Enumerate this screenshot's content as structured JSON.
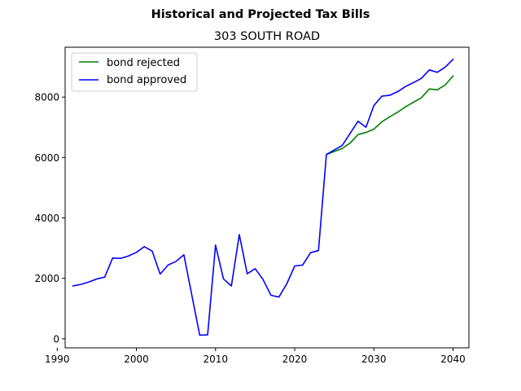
{
  "chart_data": {
    "type": "line",
    "title": "Historical and Projected Tax Bills",
    "subtitle": "303 SOUTH ROAD",
    "xlabel": "",
    "ylabel": "",
    "xlim": [
      1991,
      2042
    ],
    "ylim": [
      -300,
      9650
    ],
    "xticks": [
      1990,
      2000,
      2010,
      2020,
      2030,
      2040
    ],
    "yticks": [
      0,
      2000,
      4000,
      6000,
      8000
    ],
    "grid": false,
    "legend_position": "top-left",
    "series": [
      {
        "name": "bond rejected",
        "color": "#008000",
        "x": [
          2024,
          2025,
          2026,
          2027,
          2028,
          2029,
          2030,
          2031,
          2032,
          2033,
          2034,
          2035,
          2036,
          2037,
          2038,
          2039,
          2040
        ],
        "values": [
          6100,
          6200,
          6300,
          6480,
          6760,
          6830,
          6940,
          7180,
          7350,
          7500,
          7680,
          7830,
          7980,
          8270,
          8240,
          8400,
          8700
        ]
      },
      {
        "name": "bond approved",
        "color": "#0000ff",
        "x": [
          1992,
          1993,
          1994,
          1995,
          1996,
          1997,
          1998,
          1999,
          2000,
          2001,
          2002,
          2003,
          2004,
          2005,
          2006,
          2007,
          2008,
          2009,
          2010,
          2011,
          2012,
          2013,
          2014,
          2015,
          2016,
          2017,
          2018,
          2019,
          2020,
          2021,
          2022,
          2023,
          2024,
          2025,
          2026,
          2027,
          2028,
          2029,
          2030,
          2031,
          2032,
          2033,
          2034,
          2035,
          2036,
          2037,
          2038,
          2039,
          2040
        ],
        "values": [
          1750,
          1800,
          1880,
          1980,
          2040,
          2670,
          2660,
          2740,
          2860,
          3050,
          2900,
          2140,
          2440,
          2560,
          2780,
          1450,
          120,
          130,
          3100,
          1980,
          1750,
          3450,
          2150,
          2320,
          1960,
          1440,
          1380,
          1820,
          2410,
          2440,
          2850,
          2920,
          6100,
          6250,
          6400,
          6800,
          7200,
          7000,
          7720,
          8030,
          8060,
          8180,
          8350,
          8480,
          8620,
          8900,
          8820,
          8990,
          9250
        ]
      }
    ]
  }
}
